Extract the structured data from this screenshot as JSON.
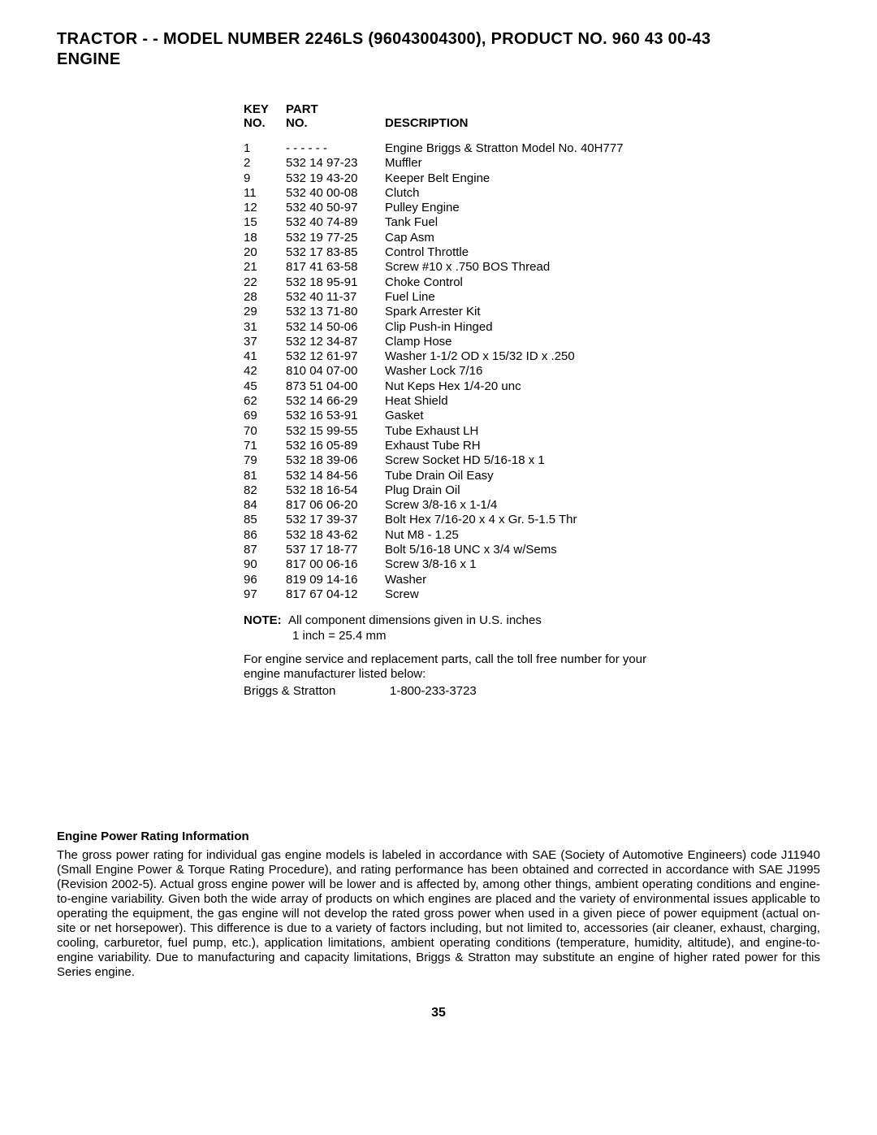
{
  "title_line1": "TRACTOR - - MODEL NUMBER 2246LS (96043004300), PRODUCT NO. 960 43 00-43",
  "title_line2": "ENGINE",
  "headers": {
    "key": "KEY NO.",
    "part": "PART NO.",
    "desc": "DESCRIPTION"
  },
  "rows": [
    {
      "key": "1",
      "part": "- - - - - -",
      "desc": "Engine Briggs & Stratton Model No. 40H777"
    },
    {
      "key": "2",
      "part": "532 14 97-23",
      "desc": "Muffler"
    },
    {
      "key": "9",
      "part": "532 19 43-20",
      "desc": "Keeper Belt Engine"
    },
    {
      "key": "11",
      "part": "532 40 00-08",
      "desc": "Clutch"
    },
    {
      "key": "12",
      "part": "532 40 50-97",
      "desc": "Pulley Engine"
    },
    {
      "key": "15",
      "part": "532 40 74-89",
      "desc": "Tank Fuel"
    },
    {
      "key": "18",
      "part": "532 19 77-25",
      "desc": "Cap Asm"
    },
    {
      "key": "20",
      "part": "532 17 83-85",
      "desc": "Control Throttle"
    },
    {
      "key": "21",
      "part": "817 41 63-58",
      "desc": "Screw #10 x .750 BOS Thread"
    },
    {
      "key": "22",
      "part": "532 18 95-91",
      "desc": "Choke Control"
    },
    {
      "key": "28",
      "part": "532 40 11-37",
      "desc": "Fuel Line"
    },
    {
      "key": "29",
      "part": "532 13 71-80",
      "desc": "Spark Arrester Kit"
    },
    {
      "key": "31",
      "part": "532 14 50-06",
      "desc": "Clip Push-in Hinged"
    },
    {
      "key": "37",
      "part": "532 12 34-87",
      "desc": "Clamp Hose"
    },
    {
      "key": "41",
      "part": "532 12 61-97",
      "desc": "Washer 1-1/2 OD x 15/32 ID x .250"
    },
    {
      "key": "42",
      "part": "810 04 07-00",
      "desc": "Washer Lock 7/16"
    },
    {
      "key": "45",
      "part": "873 51 04-00",
      "desc": "Nut Keps Hex 1/4-20 unc"
    },
    {
      "key": "62",
      "part": "532 14 66-29",
      "desc": "Heat Shield"
    },
    {
      "key": "69",
      "part": "532 16 53-91",
      "desc": "Gasket"
    },
    {
      "key": "70",
      "part": "532 15 99-55",
      "desc": "Tube Exhaust LH"
    },
    {
      "key": "71",
      "part": "532 16 05-89",
      "desc": "Exhaust Tube RH"
    },
    {
      "key": "79",
      "part": "532 18 39-06",
      "desc": "Screw Socket HD 5/16-18 x 1"
    },
    {
      "key": "81",
      "part": "532 14 84-56",
      "desc": "Tube Drain Oil Easy"
    },
    {
      "key": "82",
      "part": "532 18 16-54",
      "desc": "Plug Drain Oil"
    },
    {
      "key": "84",
      "part": "817 06 06-20",
      "desc": "Screw 3/8-16 x 1-1/4"
    },
    {
      "key": "85",
      "part": "532 17 39-37",
      "desc": "Bolt Hex 7/16-20 x 4 x Gr. 5-1.5 Thr"
    },
    {
      "key": "86",
      "part": "532 18 43-62",
      "desc": "Nut M8 - 1.25"
    },
    {
      "key": "87",
      "part": "537 17 18-77",
      "desc": "Bolt 5/16-18 UNC x 3/4 w/Sems"
    },
    {
      "key": "90",
      "part": "817 00 06-16",
      "desc": "Screw 3/8-16 x 1"
    },
    {
      "key": "96",
      "part": "819 09 14-16",
      "desc": "Washer"
    },
    {
      "key": "97",
      "part": "817 67 04-12",
      "desc": "Screw"
    }
  ],
  "note": {
    "label": "NOTE:",
    "line1": "All component dimensions given in U.S. inches",
    "line2": "1 inch = 25.4 mm"
  },
  "service": {
    "line1": "For engine service and replacement parts, call the toll free number for your engine manufacturer listed below:",
    "brand": "Briggs & Stratton",
    "phone": "1-800-233-3723"
  },
  "power": {
    "header": "Engine Power Rating Information",
    "text": "The gross power rating for individual gas engine models is labeled in accordance with SAE (Society of Automotive Engineers) code J11940 (Small Engine Power & Torque Rating Procedure), and rating performance has been obtained and corrected in accordance with SAE J1995 (Revision 2002-5). Actual gross engine power will be lower and is affected by, among other things, ambient operating conditions and engine-to-engine variability. Given both the wide array of products on which engines are placed and the variety of environmental issues applicable to operating the equipment, the gas engine will not develop the rated gross power when used in a given piece of power equipment (actual on-site or net horsepower). This difference is due to a variety of factors including, but not limited to, accessories (air cleaner, exhaust, charging, cooling, carburetor, fuel pump, etc.), application limitations, ambient operating conditions (temperature, humidity, altitude), and engine-to-engine variability. Due to manufacturing and capacity limitations, Briggs & Stratton may substitute an engine of higher rated power for this Series engine."
  },
  "page_number": "35"
}
